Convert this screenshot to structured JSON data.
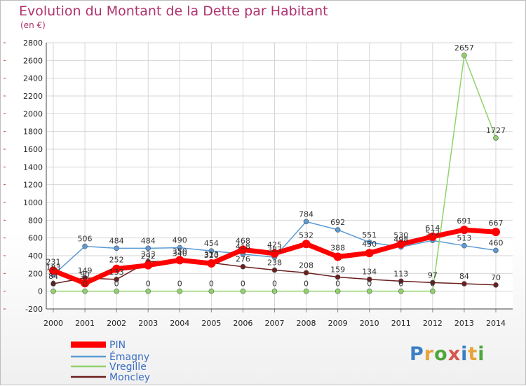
{
  "header": {
    "title": "Evolution du Montant de la Dette par Habitant",
    "unit": "(en €)"
  },
  "logo": {
    "text": "Proxiti",
    "letter_colors": [
      "#3b7fc4",
      "#e8a33a",
      "#4fa63b",
      "#d9534f",
      "#3b7fc4",
      "#e8a33a",
      "#4fa63b"
    ]
  },
  "chart_data": {
    "type": "line",
    "title": "Evolution du Montant de la Dette par Habitant",
    "ylabel": "(en €)",
    "xlabel": "",
    "ylim": [
      -200,
      2800
    ],
    "y_ticks": [
      -200,
      0,
      200,
      400,
      600,
      800,
      1000,
      1200,
      1400,
      1600,
      1800,
      2000,
      2200,
      2400,
      2600,
      2800
    ],
    "grid": true,
    "legend_position": "bottom-left",
    "categories": [
      "2000",
      "2001",
      "2002",
      "2003",
      "2004",
      "2005",
      "2006",
      "2007",
      "2008",
      "2009",
      "2010",
      "2011",
      "2012",
      "2013",
      "2014"
    ],
    "series": [
      {
        "name": "PIN",
        "color": "#ff0000",
        "values": [
          231,
          90,
          252,
          292,
          350,
          313,
          468,
          425,
          532,
          388,
          430,
          530,
          614,
          691,
          667
        ],
        "labels": [
          "231",
          "90",
          "252",
          "292",
          "350",
          "313",
          "468",
          "425",
          "532",
          "388",
          "430",
          "530",
          "614",
          "691",
          "667"
        ]
      },
      {
        "name": "Émagny",
        "color": "#5b9bd5",
        "values": [
          183,
          506,
          484,
          484,
          490,
          454,
          418,
          383,
          784,
          692,
          551,
          498,
          572,
          513,
          460
        ],
        "labels": [
          "183",
          "506",
          "484",
          "484",
          "490",
          "454",
          "418",
          "383",
          "784",
          "692",
          "551",
          "498",
          "572",
          "513",
          "460"
        ]
      },
      {
        "name": "Vregille",
        "color": "#8fd36b",
        "values": [
          0,
          0,
          0,
          0,
          0,
          0,
          0,
          0,
          0,
          0,
          0,
          0,
          0,
          2657,
          1727
        ],
        "labels": [
          "0",
          "0",
          "0",
          "0",
          "0",
          "0",
          "0",
          "0",
          "0",
          "0",
          "0",
          "0",
          "0",
          "2657",
          "1727"
        ]
      },
      {
        "name": "Moncley",
        "color": "#6b1f1f",
        "values": [
          84,
          149,
          133,
          333,
          340,
          320,
          276,
          238,
          208,
          159,
          134,
          113,
          97,
          84,
          70
        ],
        "labels": [
          "84",
          "149",
          "133",
          "333",
          "340",
          "320",
          "276",
          "238",
          "208",
          "159",
          "134",
          "113",
          "97",
          "84",
          "70"
        ]
      }
    ]
  }
}
